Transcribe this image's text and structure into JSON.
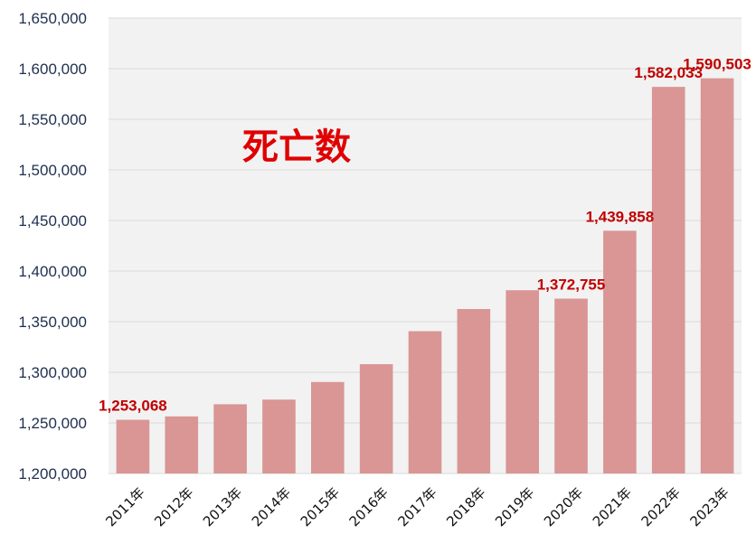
{
  "chart_data": {
    "type": "bar",
    "title": "死亡数",
    "categories": [
      "2011年",
      "2012年",
      "2013年",
      "2014年",
      "2015年",
      "2016年",
      "2017年",
      "2018年",
      "2019年",
      "2020年",
      "2021年",
      "2022年",
      "2023年"
    ],
    "values": [
      1253068,
      1256400,
      1268400,
      1273000,
      1290400,
      1308000,
      1340600,
      1362500,
      1381100,
      1372755,
      1439858,
      1582033,
      1590503
    ],
    "data_labels": [
      "1,253,068",
      null,
      null,
      null,
      null,
      null,
      null,
      null,
      null,
      "1,372,755",
      "1,439,858",
      "1,582,033",
      "1,590,503"
    ],
    "ylim": [
      1200000,
      1650000
    ],
    "yticks": [
      1200000,
      1250000,
      1300000,
      1350000,
      1400000,
      1450000,
      1500000,
      1550000,
      1600000,
      1650000
    ],
    "ytick_labels": [
      "1,200,000",
      "1,250,000",
      "1,300,000",
      "1,350,000",
      "1,400,000",
      "1,450,000",
      "1,500,000",
      "1,550,000",
      "1,600,000",
      "1,650,000"
    ],
    "xlabel": "",
    "ylabel": "",
    "grid": true,
    "colors": {
      "bar": "#d99694",
      "grid": "#d9d9d9",
      "plot_background": "#f2f2f2",
      "data_label": "#c00000",
      "title": "#e00000"
    }
  }
}
